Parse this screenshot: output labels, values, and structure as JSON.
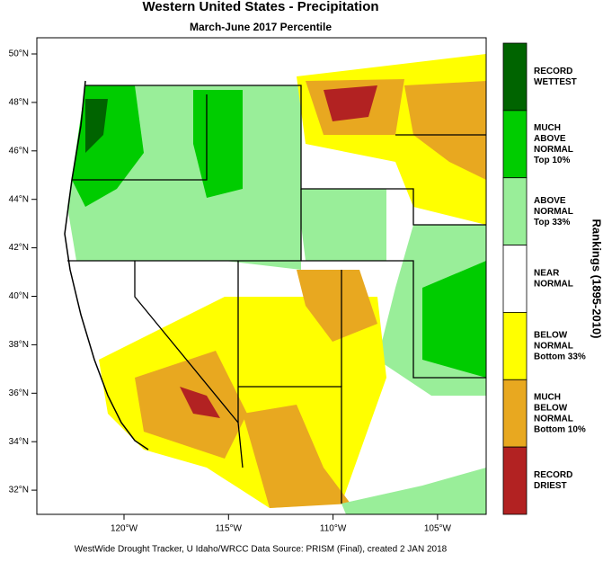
{
  "header": {
    "title": "Western United States - Precipitation",
    "subtitle": "March-June 2017 Percentile"
  },
  "map": {
    "lat_labels": [
      "50°N",
      "48°N",
      "46°N",
      "44°N",
      "42°N",
      "40°N",
      "38°N",
      "36°N",
      "34°N",
      "32°N"
    ],
    "lon_labels": [
      "120°W",
      "115°W",
      "110°W",
      "105°W"
    ]
  },
  "legend": {
    "title": "Rankings (1895-2010)",
    "items": [
      {
        "color": "#006400",
        "lines": [
          "RECORD",
          "WETTEST"
        ]
      },
      {
        "color": "#00cc00",
        "lines": [
          "MUCH",
          "ABOVE",
          "NORMAL",
          "Top 10%"
        ]
      },
      {
        "color": "#99ee99",
        "lines": [
          "ABOVE",
          "NORMAL",
          "Top 33%"
        ]
      },
      {
        "color": "#ffffff",
        "lines": [
          "NEAR",
          "NORMAL"
        ]
      },
      {
        "color": "#ffff00",
        "lines": [
          "BELOW",
          "NORMAL",
          "Bottom 33%"
        ]
      },
      {
        "color": "#e8a820",
        "lines": [
          "MUCH",
          "BELOW",
          "NORMAL",
          "Bottom 10%"
        ]
      },
      {
        "color": "#b22222",
        "lines": [
          "RECORD",
          "DRIEST"
        ]
      }
    ]
  },
  "footer": "WestWide Drought Tracker, U Idaho/WRCC Data Source: PRISM (Final), created  2 JAN 2018"
}
